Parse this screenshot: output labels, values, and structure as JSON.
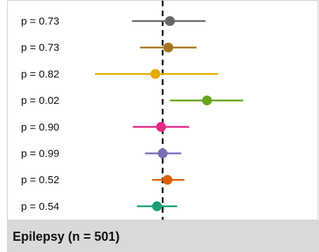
{
  "chart_data": {
    "type": "forest",
    "facet_title": "Epilepsy (n = 501)",
    "reference_x": 0,
    "xlim": [
      -1.0,
      1.0
    ],
    "grid": false,
    "legend": "none",
    "rows": [
      {
        "p_label": "p = 0.73",
        "estimate": 0.09,
        "lower": -0.38,
        "upper": 0.53,
        "color": "#666666"
      },
      {
        "p_label": "p = 0.73",
        "estimate": 0.07,
        "lower": -0.28,
        "upper": 0.42,
        "color": "#A6761D"
      },
      {
        "p_label": "p = 0.82",
        "estimate": -0.09,
        "lower": -0.84,
        "upper": 0.69,
        "color": "#E6AB02"
      },
      {
        "p_label": "p = 0.02",
        "estimate": 0.55,
        "lower": 0.09,
        "upper": 1.0,
        "color": "#66A61E"
      },
      {
        "p_label": "p = 0.90",
        "estimate": -0.02,
        "lower": -0.37,
        "upper": 0.33,
        "color": "#E7298A"
      },
      {
        "p_label": "p = 0.99",
        "estimate": 0.0,
        "lower": -0.22,
        "upper": 0.23,
        "color": "#7570B3"
      },
      {
        "p_label": "p = 0.52",
        "estimate": 0.06,
        "lower": -0.13,
        "upper": 0.27,
        "color": "#D95F02"
      },
      {
        "p_label": "p = 0.54",
        "estimate": -0.07,
        "lower": -0.32,
        "upper": 0.18,
        "color": "#1B9E77"
      }
    ]
  }
}
